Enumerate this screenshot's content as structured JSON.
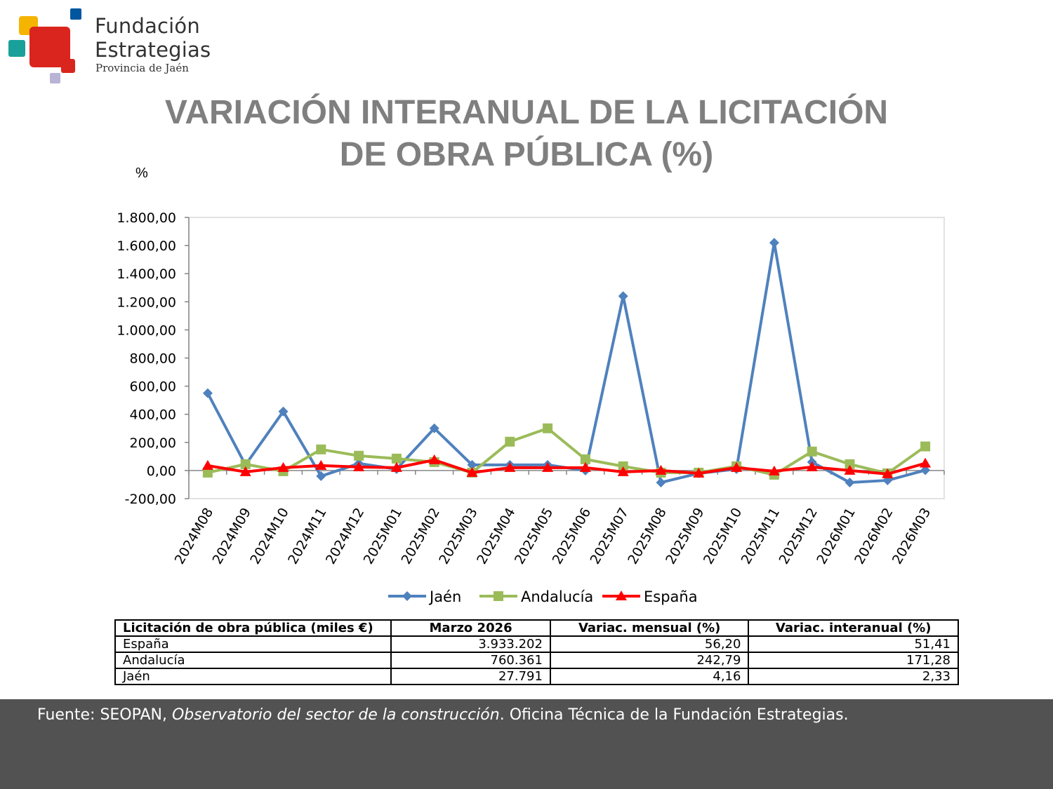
{
  "brand": {
    "name_line1": "Fundación",
    "name_line2": "Estrategias",
    "subtitle": "Provincia de Jaén",
    "colors": [
      "#f5b400",
      "#0057a0",
      "#1aa09a",
      "#d9251d",
      "#b9b3d6"
    ]
  },
  "title": {
    "line1": "VARIACIÓN INTERANUAL DE LA LICITACIÓN",
    "line2": "DE OBRA PÚBLICA (%)"
  },
  "chart_data": {
    "type": "line",
    "ylabel": "%",
    "ylim": [
      -200,
      1800
    ],
    "yticks": [
      -200,
      0,
      200,
      400,
      600,
      800,
      1000,
      1200,
      1400,
      1600,
      1800
    ],
    "ytick_labels": [
      "-200,00",
      "0,00",
      "200,00",
      "400,00",
      "600,00",
      "800,00",
      "1.000,00",
      "1.200,00",
      "1.400,00",
      "1.600,00",
      "1.800,00"
    ],
    "categories": [
      "2024M08",
      "2024M09",
      "2024M10",
      "2024M11",
      "2024M12",
      "2025M01",
      "2025M02",
      "2025M03",
      "2025M04",
      "2025M05",
      "2025M06",
      "2025M07",
      "2025M08",
      "2025M09",
      "2025M10",
      "2025M11",
      "2025M12",
      "2026M01",
      "2026M02",
      "2026M03"
    ],
    "series": [
      {
        "name": "Jaén",
        "color": "#4f81bd",
        "marker": "diamond",
        "values": [
          550,
          40,
          420,
          -40,
          50,
          10,
          300,
          40,
          40,
          40,
          0,
          1240,
          -85,
          -20,
          10,
          1620,
          60,
          -85,
          -70,
          2.33
        ]
      },
      {
        "name": "Andalucía",
        "color": "#9bbb59",
        "marker": "square",
        "values": [
          -15,
          45,
          -5,
          150,
          105,
          85,
          60,
          -15,
          205,
          300,
          80,
          30,
          -15,
          -15,
          30,
          -30,
          135,
          45,
          -20,
          171.28
        ]
      },
      {
        "name": "España",
        "color": "#ff0000",
        "marker": "triangle",
        "values": [
          35,
          -10,
          20,
          35,
          25,
          20,
          75,
          -15,
          20,
          20,
          20,
          -10,
          0,
          -20,
          20,
          -5,
          25,
          0,
          -25,
          51.41
        ]
      }
    ],
    "legend_position": "bottom",
    "grid": false
  },
  "table": {
    "headers": [
      "Licitación de obra pública (miles €)",
      "Marzo 2026",
      "Variac. mensual (%)",
      "Variac. interanual (%)"
    ],
    "rows": [
      [
        "España",
        "3.933.202",
        "56,20",
        "51,41"
      ],
      [
        "Andalucía",
        "760.361",
        "242,79",
        "171,28"
      ],
      [
        "Jaén",
        "27.791",
        "4,16",
        "2,33"
      ]
    ]
  },
  "footer": {
    "prefix": "Fuente: SEOPAN, ",
    "italic": "Observatorio del sector de la construcción",
    "suffix": ". Oficina Técnica de la Fundación Estrategias."
  }
}
